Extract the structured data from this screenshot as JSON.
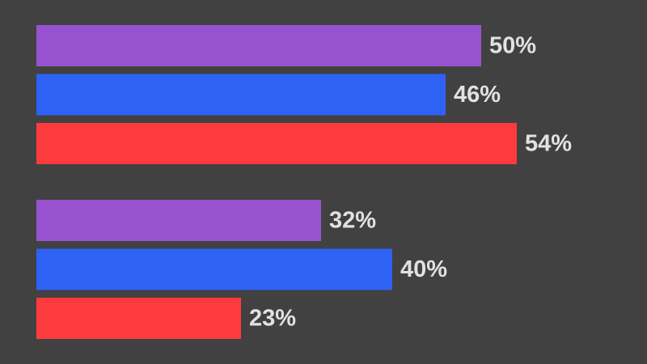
{
  "chart_data": {
    "type": "bar",
    "orientation": "horizontal",
    "title": "",
    "xlabel": "",
    "ylabel": "",
    "xlim": [
      0,
      100
    ],
    "grid": false,
    "legend": "none",
    "colors": {
      "background": "#414141",
      "label": "#e2e2e2"
    },
    "groups": [
      {
        "bars": [
          {
            "value": 50,
            "label": "50%",
            "color": "#9753cf"
          },
          {
            "value": 46,
            "label": "46%",
            "color": "#2e62f5"
          },
          {
            "value": 54,
            "label": "54%",
            "color": "#fd3b3f"
          }
        ]
      },
      {
        "bars": [
          {
            "value": 32,
            "label": "32%",
            "color": "#9753cf"
          },
          {
            "value": 40,
            "label": "40%",
            "color": "#2e62f5"
          },
          {
            "value": 23,
            "label": "23%",
            "color": "#fd3b3f"
          }
        ]
      }
    ]
  }
}
